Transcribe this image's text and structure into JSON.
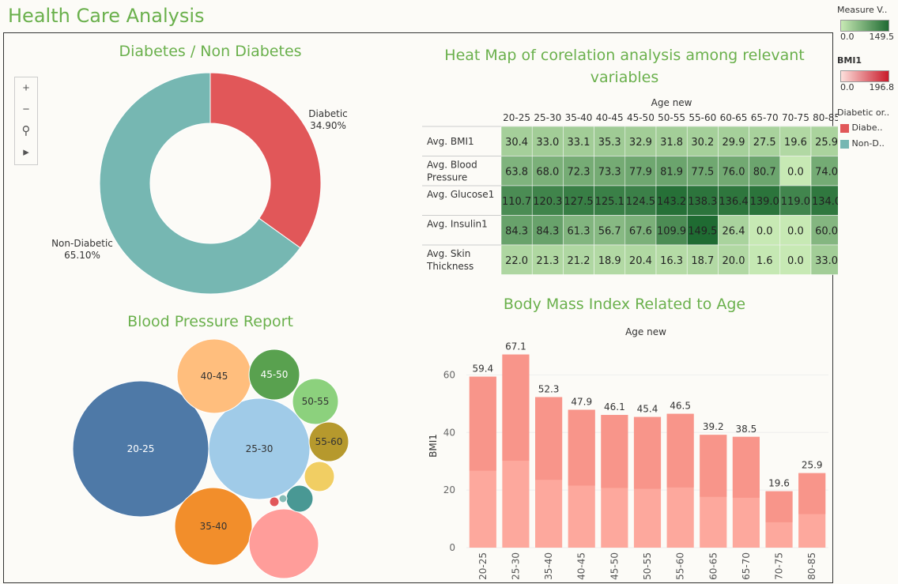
{
  "title": "Health Care Analysis",
  "zoom_controls": {
    "plus": "+",
    "minus": "−",
    "pin": "⚲",
    "play": "▸"
  },
  "legends": {
    "measure": {
      "title": "Measure V..",
      "min": "0.0",
      "max": "149.5",
      "color_low": "#c7e9b4",
      "color_high": "#1f6b32"
    },
    "bmi": {
      "title": "BMI1",
      "min": "0.0",
      "max": "196.8",
      "color_low": "#fde0dc",
      "color_high": "#c91a2a"
    },
    "diabetic": {
      "title": "Diabetic or..",
      "items": [
        {
          "label": "Diabe..",
          "color": "#e15759"
        },
        {
          "label": "Non-D..",
          "color": "#76b7b2"
        }
      ]
    }
  },
  "chart_data": [
    {
      "type": "pie",
      "title": "Diabetes / Non Diabetes",
      "slices": [
        {
          "label": "Diabetic",
          "value": 34.9,
          "pct_label": "34.90%",
          "color": "#e15759"
        },
        {
          "label": "Non-Diabetic",
          "value": 65.1,
          "pct_label": "65.10%",
          "color": "#76b7b2"
        }
      ]
    },
    {
      "type": "heatmap",
      "title": "Heat Map of corelation analysis among relevant variables",
      "column_header": "Age new",
      "columns": [
        "20-25",
        "25-30",
        "35-40",
        "40-45",
        "45-50",
        "50-55",
        "55-60",
        "60-65",
        "65-70",
        "70-75",
        "80-85"
      ],
      "rows": [
        {
          "label": "Avg. BMI1",
          "values": [
            30.4,
            33.0,
            33.1,
            35.3,
            32.9,
            31.8,
            30.2,
            29.9,
            27.5,
            19.6,
            25.9
          ]
        },
        {
          "label": "Avg. Blood Pressure",
          "values": [
            63.8,
            68.0,
            72.3,
            73.3,
            77.9,
            81.9,
            77.5,
            76.0,
            80.7,
            0.0,
            74.0
          ]
        },
        {
          "label": "Avg. Glucose1",
          "values": [
            110.7,
            120.3,
            127.5,
            125.1,
            124.5,
            143.2,
            138.3,
            136.4,
            139.0,
            119.0,
            134.0
          ]
        },
        {
          "label": "Avg. Insulin1",
          "values": [
            84.3,
            84.3,
            61.3,
            56.7,
            67.6,
            109.9,
            149.5,
            26.4,
            0.0,
            0.0,
            60.0
          ]
        },
        {
          "label": "Avg. Skin Thickness",
          "values": [
            22.0,
            21.3,
            21.2,
            18.9,
            20.4,
            16.3,
            18.7,
            20.0,
            1.6,
            0.0,
            33.0
          ]
        }
      ],
      "range": [
        0,
        149.5
      ]
    },
    {
      "type": "scatter",
      "title": "Blood Pressure Report",
      "bubbles": [
        {
          "label": "20-25",
          "color": "#4e79a7",
          "text_color": "#ffffff"
        },
        {
          "label": "25-30",
          "color": "#a0cbe8",
          "text_color": "#333333"
        },
        {
          "label": "40-45",
          "color": "#ffbe7d",
          "text_color": "#333333"
        },
        {
          "label": "45-50",
          "color": "#59a14f",
          "text_color": "#ffffff"
        },
        {
          "label": "50-55",
          "color": "#8cd17d",
          "text_color": "#333333"
        },
        {
          "label": "55-60",
          "color": "#b6992d",
          "text_color": "#333333"
        },
        {
          "label": "35-40",
          "color": "#f28e2b",
          "text_color": "#333333"
        },
        {
          "label": "",
          "color": "#ff9d9a",
          "text_color": "#333333"
        },
        {
          "label": "",
          "color": "#f1ce63",
          "text_color": "#333333"
        },
        {
          "label": "",
          "color": "#499894",
          "text_color": "#333333"
        },
        {
          "label": "",
          "color": "#86bcb6",
          "text_color": "#333333"
        },
        {
          "label": "",
          "color": "#e15759",
          "text_color": "#333333"
        }
      ]
    },
    {
      "type": "bar",
      "title": "Body Mass Index Related to Age",
      "header": "Age new",
      "ylabel": "BMI1",
      "ylim": [
        0,
        70
      ],
      "yticks": [
        0,
        20,
        40,
        60
      ],
      "categories": [
        "20-25",
        "25-30",
        "35-40",
        "40-45",
        "45-50",
        "50-55",
        "55-60",
        "60-65",
        "65-70",
        "70-75",
        "80-85"
      ],
      "values": [
        59.4,
        67.1,
        52.3,
        47.9,
        46.1,
        45.4,
        46.5,
        39.2,
        38.5,
        19.6,
        25.9
      ],
      "value_labels": [
        "59.4",
        "67.1",
        "52.3",
        "47.9",
        "46.1",
        "45.4",
        "46.5",
        "39.2",
        "38.5",
        "19.6",
        "25.9"
      ]
    }
  ]
}
